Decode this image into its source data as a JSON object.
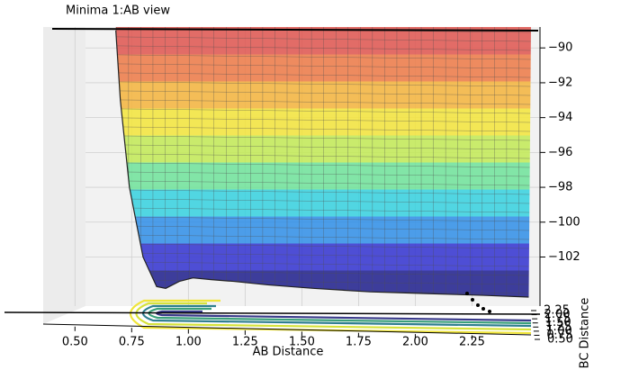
{
  "chart_data": {
    "type": "surface",
    "title": "Minima 1:AB view",
    "xlabel": "AB Distance",
    "ylabel": "BC Distance",
    "xlim": [
      0.36,
      2.51
    ],
    "xticks": [
      {
        "value": 0.5,
        "label": "0.50"
      },
      {
        "value": 0.75,
        "label": "0.75"
      },
      {
        "value": 1.0,
        "label": "1.00"
      },
      {
        "value": 1.25,
        "label": "1.25"
      },
      {
        "value": 1.5,
        "label": "1.50"
      },
      {
        "value": 1.75,
        "label": "1.75"
      },
      {
        "value": 2.0,
        "label": "2.00"
      },
      {
        "value": 2.25,
        "label": "2.25"
      }
    ],
    "yticks": [
      {
        "value": 0.5,
        "label": "0.50"
      },
      {
        "value": 0.75,
        "label": "0.75"
      },
      {
        "value": 1.0,
        "label": "1.00"
      },
      {
        "value": 1.25,
        "label": "1.25"
      },
      {
        "value": 1.5,
        "label": "1.50"
      },
      {
        "value": 1.75,
        "label": "1.75"
      },
      {
        "value": 2.0,
        "label": "2.00"
      },
      {
        "value": 2.25,
        "label": "2.25"
      }
    ],
    "zlim": [
      -104.3,
      -88.8
    ],
    "zticks": [
      {
        "value": -90,
        "label": "−90"
      },
      {
        "value": -92,
        "label": "−92"
      },
      {
        "value": -94,
        "label": "−94"
      },
      {
        "value": -96,
        "label": "−96"
      },
      {
        "value": -98,
        "label": "−98"
      },
      {
        "value": -100,
        "label": "−100"
      },
      {
        "value": -102,
        "label": "−102"
      }
    ],
    "profile": {
      "x": [
        0.68,
        0.7,
        0.74,
        0.8,
        0.86,
        0.9,
        0.96,
        1.02,
        1.1,
        1.2,
        1.35,
        1.55,
        1.8,
        2.05,
        2.3,
        2.5
      ],
      "z": [
        -89,
        -93,
        -98,
        -102,
        -103.7,
        -103.8,
        -103.4,
        -103.2,
        -103.3,
        -103.4,
        -103.6,
        -103.8,
        -104.0,
        -104.1,
        -104.2,
        -104.3
      ]
    },
    "colormap": [
      "#1e1e8c",
      "#3232d0",
      "#2f8fe8",
      "#35d2e0",
      "#6fe39a",
      "#c2ea55",
      "#f4e53a",
      "#f5b43c",
      "#ee7a46",
      "#e0554f"
    ],
    "grid": true
  }
}
